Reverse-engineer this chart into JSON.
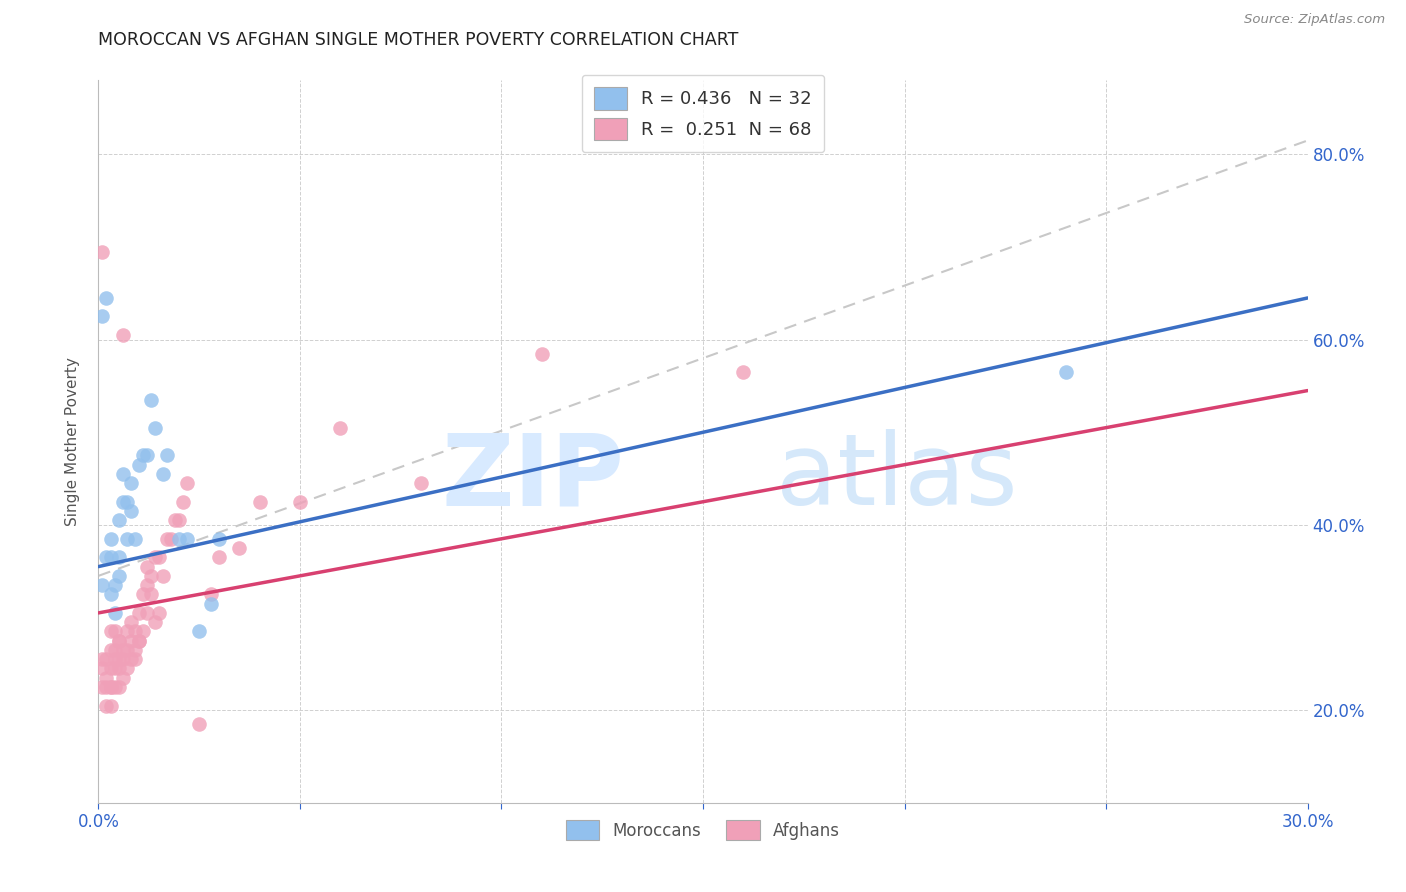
{
  "title": "MOROCCAN VS AFGHAN SINGLE MOTHER POVERTY CORRELATION CHART",
  "source": "Source: ZipAtlas.com",
  "ylabel": "Single Mother Poverty",
  "xlim": [
    0.0,
    0.3
  ],
  "ylim": [
    0.1,
    0.88
  ],
  "x_ticks": [
    0.0,
    0.05,
    0.1,
    0.15,
    0.2,
    0.25,
    0.3
  ],
  "x_tick_labels": [
    "0.0%",
    "",
    "",
    "",
    "",
    "",
    "30.0%"
  ],
  "y_ticks": [
    0.2,
    0.4,
    0.6,
    0.8
  ],
  "y_tick_labels": [
    "20.0%",
    "40.0%",
    "60.0%",
    "80.0%"
  ],
  "blue_scatter_color": "#92C0ED",
  "pink_scatter_color": "#F0A0B8",
  "blue_line_color": "#3B6FC4",
  "pink_line_color": "#D84070",
  "dashed_line_color": "#C8C8C8",
  "R_blue": 0.436,
  "N_blue": 32,
  "R_pink": 0.251,
  "N_pink": 68,
  "legend_label_blue": "Moroccans",
  "legend_label_pink": "Afghans",
  "moroccans_x": [
    0.001,
    0.001,
    0.002,
    0.002,
    0.003,
    0.003,
    0.003,
    0.004,
    0.004,
    0.005,
    0.005,
    0.005,
    0.006,
    0.006,
    0.007,
    0.007,
    0.008,
    0.008,
    0.009,
    0.01,
    0.011,
    0.012,
    0.013,
    0.014,
    0.016,
    0.017,
    0.02,
    0.022,
    0.025,
    0.028,
    0.03,
    0.24
  ],
  "moroccans_y": [
    0.335,
    0.625,
    0.365,
    0.645,
    0.325,
    0.365,
    0.385,
    0.305,
    0.335,
    0.345,
    0.365,
    0.405,
    0.425,
    0.455,
    0.385,
    0.425,
    0.415,
    0.445,
    0.385,
    0.465,
    0.475,
    0.475,
    0.535,
    0.505,
    0.455,
    0.475,
    0.385,
    0.385,
    0.285,
    0.315,
    0.385,
    0.565
  ],
  "afghans_x": [
    0.001,
    0.001,
    0.001,
    0.001,
    0.002,
    0.002,
    0.002,
    0.002,
    0.003,
    0.003,
    0.003,
    0.003,
    0.003,
    0.004,
    0.004,
    0.004,
    0.004,
    0.005,
    0.005,
    0.005,
    0.005,
    0.006,
    0.006,
    0.006,
    0.007,
    0.007,
    0.008,
    0.008,
    0.009,
    0.009,
    0.01,
    0.01,
    0.011,
    0.012,
    0.012,
    0.013,
    0.014,
    0.014,
    0.015,
    0.016,
    0.017,
    0.018,
    0.019,
    0.02,
    0.021,
    0.022,
    0.025,
    0.028,
    0.03,
    0.035,
    0.04,
    0.05,
    0.06,
    0.08,
    0.11,
    0.16,
    0.003,
    0.004,
    0.005,
    0.006,
    0.007,
    0.008,
    0.009,
    0.01,
    0.011,
    0.012,
    0.013,
    0.015
  ],
  "afghans_y": [
    0.225,
    0.245,
    0.255,
    0.695,
    0.205,
    0.225,
    0.235,
    0.255,
    0.205,
    0.225,
    0.245,
    0.265,
    0.285,
    0.225,
    0.245,
    0.265,
    0.285,
    0.225,
    0.245,
    0.255,
    0.275,
    0.235,
    0.255,
    0.605,
    0.245,
    0.265,
    0.255,
    0.275,
    0.265,
    0.285,
    0.275,
    0.305,
    0.285,
    0.305,
    0.335,
    0.345,
    0.295,
    0.365,
    0.305,
    0.345,
    0.385,
    0.385,
    0.405,
    0.405,
    0.425,
    0.445,
    0.185,
    0.325,
    0.365,
    0.375,
    0.425,
    0.425,
    0.505,
    0.445,
    0.585,
    0.565,
    0.225,
    0.255,
    0.275,
    0.265,
    0.285,
    0.295,
    0.255,
    0.275,
    0.325,
    0.355,
    0.325,
    0.365
  ],
  "dashed_line_x0": 0.0,
  "dashed_line_y0": 0.345,
  "dashed_line_x1": 0.3,
  "dashed_line_y1": 0.815,
  "blue_regression_x0": 0.0,
  "blue_regression_y0": 0.355,
  "blue_regression_x1": 0.3,
  "blue_regression_y1": 0.645,
  "pink_regression_x0": 0.0,
  "pink_regression_y0": 0.305,
  "pink_regression_x1": 0.3,
  "pink_regression_y1": 0.545
}
